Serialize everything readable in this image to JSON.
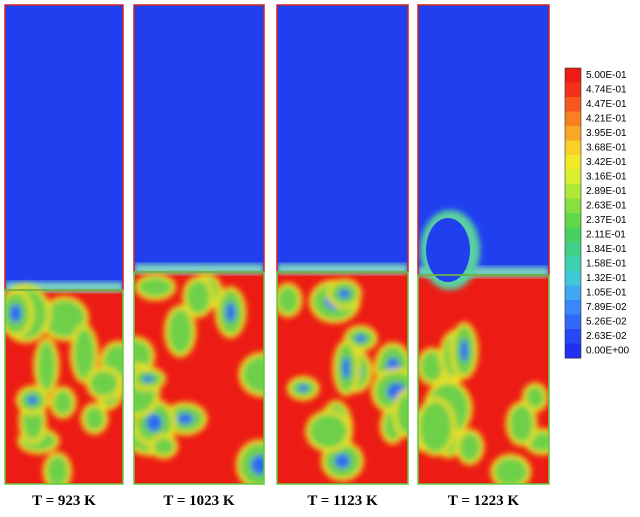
{
  "panels": [
    {
      "label": "T = 923 K"
    },
    {
      "label": "T = 1023 K"
    },
    {
      "label": "T = 1123 K"
    },
    {
      "label": "T = 1223 K"
    }
  ],
  "colorbar": {
    "labels": [
      "5.00E-01",
      "4.74E-01",
      "4.47E-01",
      "4.21E-01",
      "3.95E-01",
      "3.68E-01",
      "3.42E-01",
      "3.16E-01",
      "2.89E-01",
      "2.63E-01",
      "2.37E-01",
      "2.11E-01",
      "1.84E-01",
      "1.58E-01",
      "1.32E-01",
      "1.05E-01",
      "7.89E-02",
      "5.26E-02",
      "2.63E-02",
      "0.00E+00"
    ]
  }
}
